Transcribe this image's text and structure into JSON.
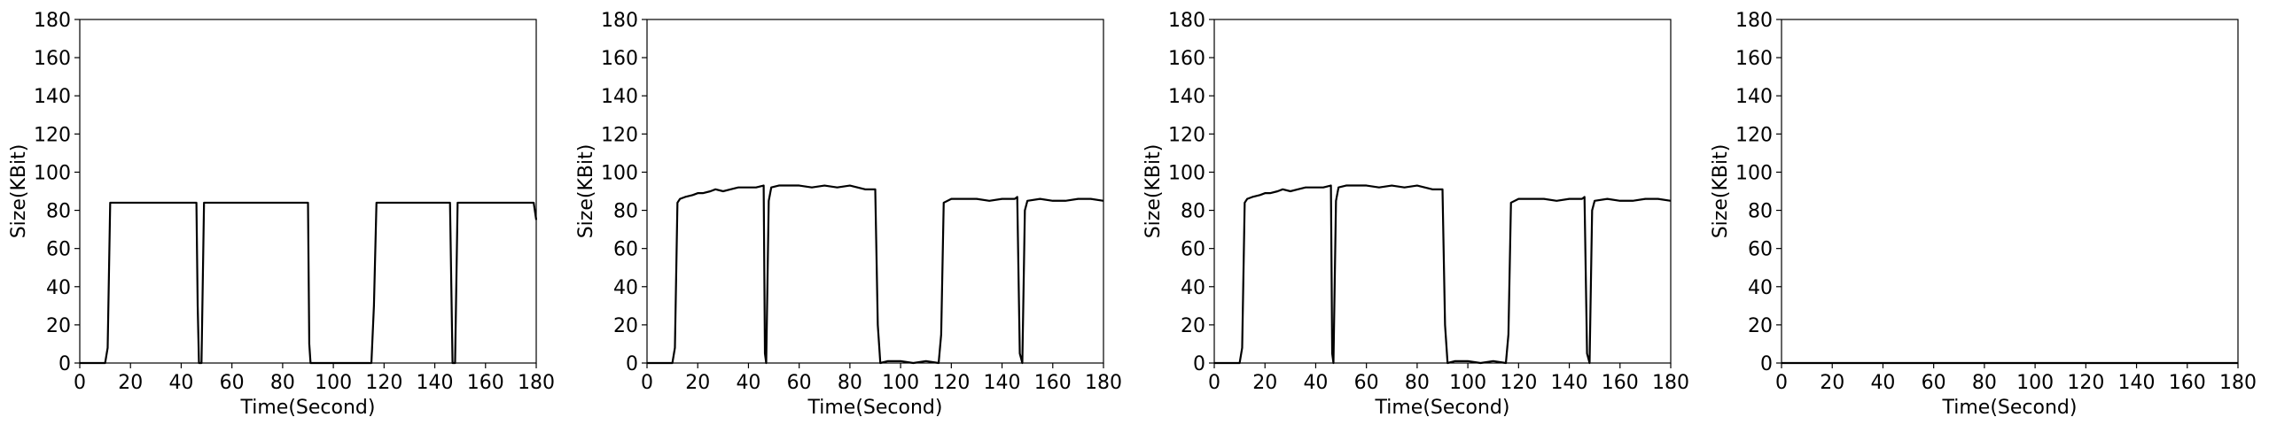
{
  "chart_data": [
    {
      "type": "line",
      "xlabel": "Time(Second)",
      "ylabel": "Size(KBit)",
      "xlim": [
        0,
        180
      ],
      "ylim": [
        0,
        180
      ],
      "xticks": [
        0,
        20,
        40,
        60,
        80,
        100,
        120,
        140,
        160,
        180
      ],
      "yticks": [
        0,
        20,
        40,
        60,
        80,
        100,
        120,
        140,
        160,
        180
      ],
      "grid": false,
      "line_color": "#000000",
      "series": [
        {
          "x": [
            0,
            5,
            10,
            11,
            12,
            13,
            20,
            30,
            40,
            46,
            46.5,
            47,
            48,
            49,
            55,
            65,
            75,
            85,
            90,
            90.5,
            91,
            95,
            105,
            110,
            115,
            116,
            117,
            125,
            135,
            145,
            146,
            147,
            148,
            149,
            155,
            165,
            175,
            179,
            180
          ],
          "y": [
            0,
            0,
            0,
            8,
            84,
            84,
            84,
            84,
            84,
            84,
            30,
            0,
            0,
            84,
            84,
            84,
            84,
            84,
            84,
            10,
            0,
            0,
            0,
            0,
            0,
            30,
            84,
            84,
            84,
            84,
            84,
            0,
            0,
            84,
            84,
            84,
            84,
            84,
            75
          ]
        }
      ]
    },
    {
      "type": "line",
      "xlabel": "Time(Second)",
      "ylabel": "Size(KBit)",
      "xlim": [
        0,
        180
      ],
      "ylim": [
        0,
        180
      ],
      "xticks": [
        0,
        20,
        40,
        60,
        80,
        100,
        120,
        140,
        160,
        180
      ],
      "yticks": [
        0,
        20,
        40,
        60,
        80,
        100,
        120,
        140,
        160,
        180
      ],
      "grid": false,
      "line_color": "#000000",
      "series": [
        {
          "x": [
            0,
            5,
            10,
            11,
            12,
            13,
            15,
            18,
            20,
            22,
            25,
            27,
            30,
            33,
            36,
            40,
            43,
            46,
            46.5,
            47,
            48,
            49,
            52,
            55,
            60,
            65,
            70,
            75,
            80,
            83,
            86,
            90,
            91,
            92,
            95,
            100,
            105,
            110,
            115,
            116,
            117,
            120,
            125,
            130,
            135,
            140,
            145,
            146,
            147,
            148,
            149,
            150,
            155,
            160,
            165,
            170,
            175,
            180
          ],
          "y": [
            0,
            0,
            0,
            8,
            84,
            86,
            87,
            88,
            89,
            89,
            90,
            91,
            90,
            91,
            92,
            92,
            92,
            93,
            5,
            0,
            85,
            92,
            93,
            93,
            93,
            92,
            93,
            92,
            93,
            92,
            91,
            91,
            20,
            0,
            1,
            1,
            0,
            1,
            0,
            15,
            84,
            86,
            86,
            86,
            85,
            86,
            86,
            87,
            5,
            0,
            80,
            85,
            86,
            85,
            85,
            86,
            86,
            85
          ]
        }
      ]
    },
    {
      "type": "line",
      "xlabel": "Time(Second)",
      "ylabel": "Size(KBit)",
      "xlim": [
        0,
        180
      ],
      "ylim": [
        0,
        180
      ],
      "xticks": [
        0,
        20,
        40,
        60,
        80,
        100,
        120,
        140,
        160,
        180
      ],
      "yticks": [
        0,
        20,
        40,
        60,
        80,
        100,
        120,
        140,
        160,
        180
      ],
      "grid": false,
      "line_color": "#000000",
      "series": [
        {
          "x": [
            0,
            5,
            10,
            11,
            12,
            13,
            15,
            18,
            20,
            22,
            25,
            27,
            30,
            33,
            36,
            40,
            43,
            46,
            46.5,
            47,
            48,
            49,
            52,
            55,
            60,
            65,
            70,
            75,
            80,
            83,
            86,
            90,
            91,
            92,
            95,
            100,
            105,
            110,
            115,
            116,
            117,
            120,
            125,
            130,
            135,
            140,
            145,
            146,
            147,
            148,
            149,
            150,
            155,
            160,
            165,
            170,
            175,
            180
          ],
          "y": [
            0,
            0,
            0,
            8,
            84,
            86,
            87,
            88,
            89,
            89,
            90,
            91,
            90,
            91,
            92,
            92,
            92,
            93,
            5,
            0,
            85,
            92,
            93,
            93,
            93,
            92,
            93,
            92,
            93,
            92,
            91,
            91,
            20,
            0,
            1,
            1,
            0,
            1,
            0,
            15,
            84,
            86,
            86,
            86,
            85,
            86,
            86,
            87,
            5,
            0,
            80,
            85,
            86,
            85,
            85,
            86,
            86,
            85
          ]
        }
      ]
    },
    {
      "type": "line",
      "xlabel": "Time(Second)",
      "ylabel": "Size(KBit)",
      "xlim": [
        0,
        180
      ],
      "ylim": [
        0,
        180
      ],
      "xticks": [
        0,
        20,
        40,
        60,
        80,
        100,
        120,
        140,
        160,
        180
      ],
      "yticks": [
        0,
        20,
        40,
        60,
        80,
        100,
        120,
        140,
        160,
        180
      ],
      "grid": false,
      "line_color": "#000000",
      "series": [
        {
          "x": [
            0,
            180
          ],
          "y": [
            0,
            0
          ]
        }
      ]
    }
  ]
}
